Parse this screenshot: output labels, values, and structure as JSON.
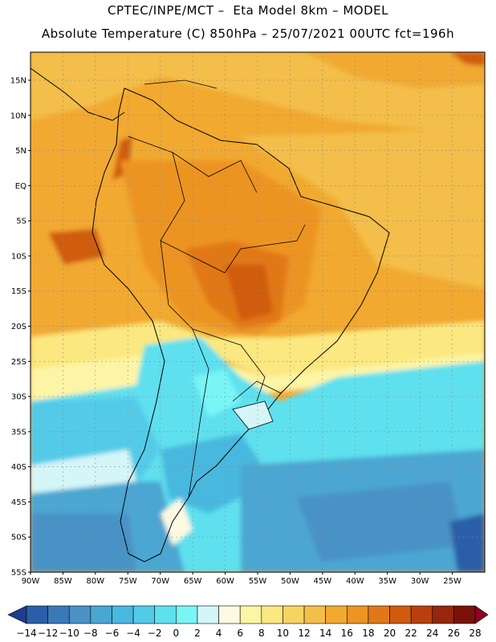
{
  "header": {
    "line1": "CPTEC/INPE/MCT –  Eta Model 8km – MODEL",
    "line2": "Absolute Temperature (C) 850hPa – 25/07/2021 00UTC fct=196h"
  },
  "axes": {
    "lat_labels": [
      "15N",
      "10N",
      "5N",
      "EQ",
      "5S",
      "10S",
      "15S",
      "20S",
      "25S",
      "30S",
      "35S",
      "40S",
      "45S",
      "50S",
      "55S"
    ],
    "lat_values": [
      15,
      10,
      5,
      0,
      -5,
      -10,
      -15,
      -20,
      -25,
      -30,
      -35,
      -40,
      -45,
      -50,
      -55
    ],
    "lon_labels": [
      "90W",
      "85W",
      "80W",
      "75W",
      "70W",
      "65W",
      "60W",
      "55W",
      "50W",
      "45W",
      "40W",
      "35W",
      "30W",
      "25W"
    ],
    "lon_values": [
      -90,
      -85,
      -80,
      -75,
      -70,
      -65,
      -60,
      -55,
      -50,
      -45,
      -40,
      -35,
      -30,
      -25
    ]
  },
  "map_extent": {
    "lon_min": -90,
    "lon_max": -20,
    "lat_min": -55,
    "lat_max": 19
  },
  "colorbar": {
    "labels": [
      "−14",
      "−12",
      "−10",
      "−8",
      "−6",
      "−4",
      "−2",
      "0",
      "2",
      "4",
      "6",
      "8",
      "10",
      "12",
      "14",
      "16",
      "18",
      "20",
      "22",
      "24",
      "26",
      "28"
    ],
    "values": [
      -14,
      -12,
      -10,
      -8,
      -6,
      -4,
      -2,
      0,
      2,
      4,
      6,
      8,
      10,
      12,
      14,
      16,
      18,
      20,
      22,
      24,
      26,
      28
    ],
    "colors": [
      "#1f3c8e",
      "#2b5ea8",
      "#3a79b8",
      "#4a92c6",
      "#4ba6d2",
      "#49b8de",
      "#52cbe8",
      "#5ee0ee",
      "#7af5f5",
      "#d5f6f8",
      "#fdf9e3",
      "#fdf5a6",
      "#fbe880",
      "#f7d462",
      "#f3be4a",
      "#f1a930",
      "#ec9424",
      "#e17818",
      "#d05b10",
      "#b8400e",
      "#96260e",
      "#7a1208",
      "#8c0022"
    ]
  }
}
